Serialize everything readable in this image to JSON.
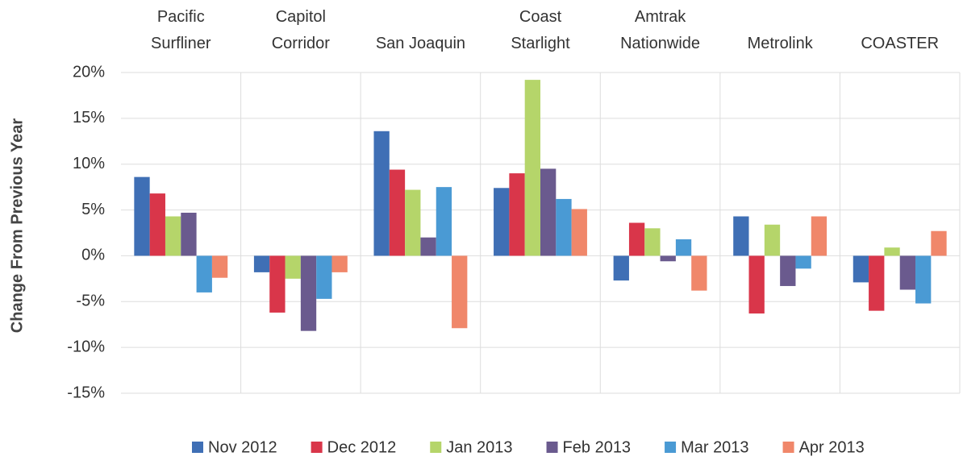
{
  "chart_data": {
    "type": "bar",
    "y_label": "Change From Previous Year",
    "categories": [
      "Pacific\nSurfliner",
      "Capitol\nCorridor",
      "San Joaquin",
      "Coast\nStarlight",
      "Amtrak\nNationwide",
      "Metrolink",
      "COASTER"
    ],
    "series": [
      {
        "name": "Nov 2012",
        "color": "#3f6fb5",
        "values": [
          8.6,
          -1.8,
          13.6,
          7.4,
          -2.7,
          4.3,
          -2.9
        ]
      },
      {
        "name": "Dec 2012",
        "color": "#d9364a",
        "values": [
          6.8,
          -6.2,
          9.4,
          9.0,
          3.6,
          -6.3,
          -6.0
        ]
      },
      {
        "name": "Jan 2013",
        "color": "#b5d56a",
        "values": [
          4.3,
          -2.5,
          7.2,
          19.2,
          3.0,
          3.4,
          0.9
        ]
      },
      {
        "name": "Feb 2013",
        "color": "#6a5a8e",
        "values": [
          4.7,
          -8.2,
          2.0,
          9.5,
          -0.6,
          -3.3,
          -3.7
        ]
      },
      {
        "name": "Mar 2013",
        "color": "#4a9ad4",
        "values": [
          -4.0,
          -4.7,
          7.5,
          6.2,
          1.8,
          -1.4,
          -5.2
        ]
      },
      {
        "name": "Apr 2013",
        "color": "#f0876a",
        "values": [
          -2.4,
          -1.8,
          -7.9,
          5.1,
          -3.8,
          4.3,
          2.7
        ]
      }
    ],
    "ylim": [
      -15,
      20
    ],
    "yticks": [
      {
        "value": -15,
        "label": "-15%"
      },
      {
        "value": -10,
        "label": "-10%"
      },
      {
        "value": -5,
        "label": "-5%"
      },
      {
        "value": 0,
        "label": "0%"
      },
      {
        "value": 5,
        "label": "5%"
      },
      {
        "value": 10,
        "label": "10%"
      },
      {
        "value": 15,
        "label": "15%"
      },
      {
        "value": 20,
        "label": "20%"
      }
    ],
    "grid": true,
    "legend": "bottom"
  }
}
